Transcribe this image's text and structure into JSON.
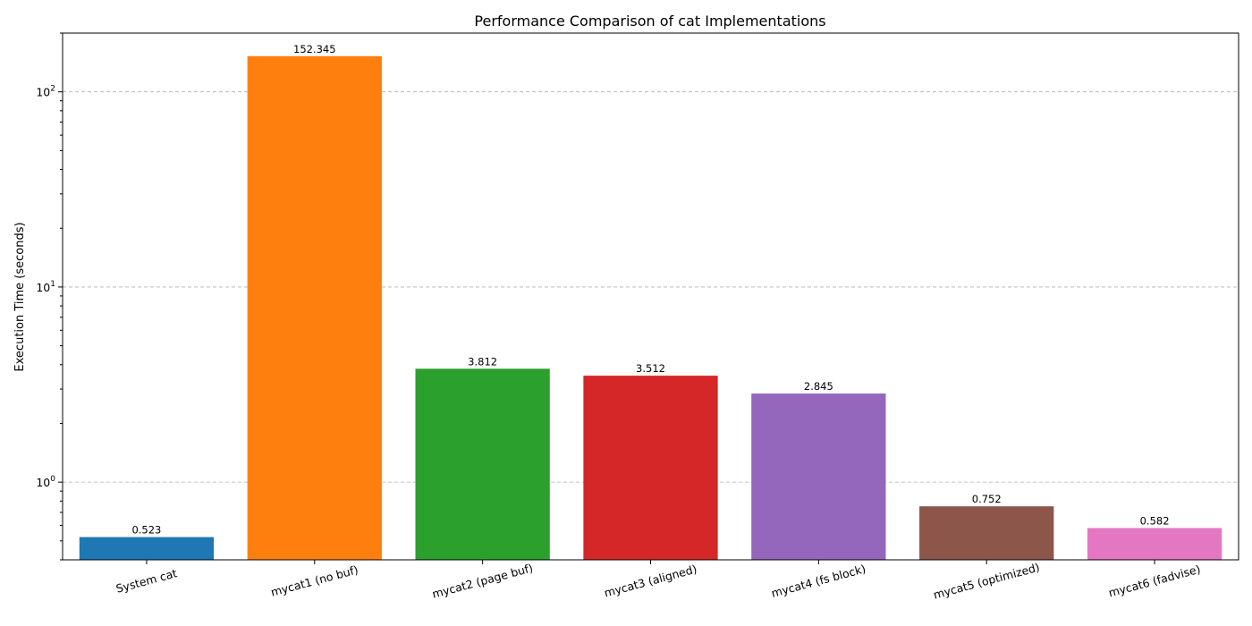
{
  "chart_data": {
    "type": "bar",
    "title": "Performance Comparison of cat Implementations",
    "xlabel": "",
    "ylabel": "Execution Time (seconds)",
    "yscale": "log",
    "ylim": [
      0.4,
      200
    ],
    "grid": "y-major-dashed",
    "categories": [
      "System cat",
      "mycat1 (no buf)",
      "mycat2 (page buf)",
      "mycat3 (aligned)",
      "mycat4 (fs block)",
      "mycat5 (optimized)",
      "mycat6 (fadvise)"
    ],
    "values": [
      0.523,
      152.345,
      3.812,
      3.512,
      2.845,
      0.752,
      0.582
    ],
    "value_labels": [
      "0.523",
      "152.345",
      "3.812",
      "3.512",
      "2.845",
      "0.752",
      "0.582"
    ],
    "colors": [
      "#1f77b4",
      "#ff7f0e",
      "#2ca02c",
      "#d62728",
      "#9467bd",
      "#8c564b",
      "#e377c2"
    ],
    "y_ticks": [
      {
        "value": 1,
        "base": "10",
        "exp": "0"
      },
      {
        "value": 10,
        "base": "10",
        "exp": "1"
      },
      {
        "value": 100,
        "base": "10",
        "exp": "2"
      }
    ]
  }
}
